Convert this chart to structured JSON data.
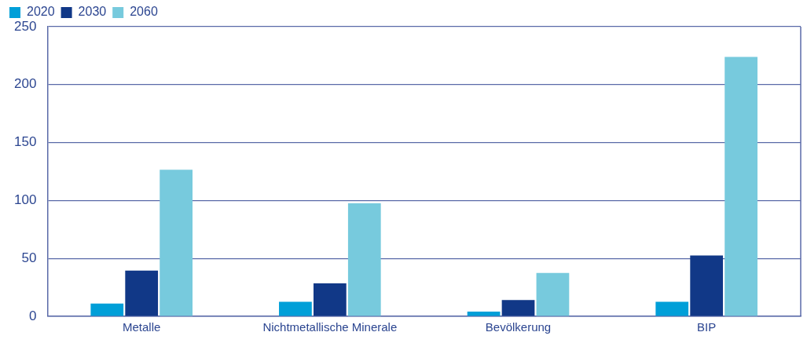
{
  "chart_data": {
    "type": "bar",
    "categories": [
      "Metalle",
      "Nichtmetallische Minerale",
      "Bevölkerung",
      "BIP"
    ],
    "series": [
      {
        "name": "2020",
        "color": "#009fd8",
        "values": [
          11,
          12.5,
          4,
          12.5
        ]
      },
      {
        "name": "2030",
        "color": "#113887",
        "values": [
          39.5,
          28.5,
          14,
          52.5
        ]
      },
      {
        "name": "2060",
        "color": "#77cadd",
        "values": [
          126.5,
          97.5,
          37.5,
          224
        ]
      }
    ],
    "ylim": [
      0,
      250
    ],
    "yticks": [
      0,
      50,
      100,
      150,
      200,
      250
    ],
    "grid": "y",
    "legend": "top left"
  }
}
